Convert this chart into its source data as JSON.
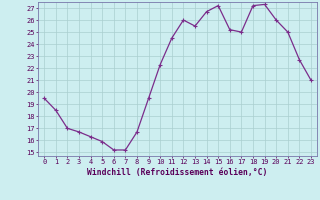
{
  "x": [
    0,
    1,
    2,
    3,
    4,
    5,
    6,
    7,
    8,
    9,
    10,
    11,
    12,
    13,
    14,
    15,
    16,
    17,
    18,
    19,
    20,
    21,
    22,
    23
  ],
  "y": [
    19.5,
    18.5,
    17.0,
    16.7,
    16.3,
    15.9,
    15.2,
    15.2,
    16.7,
    19.5,
    22.3,
    24.5,
    26.0,
    25.5,
    26.7,
    27.2,
    25.2,
    25.0,
    27.2,
    27.3,
    26.0,
    25.0,
    22.7,
    21.0
  ],
  "line_color": "#7b2d8b",
  "marker": "+",
  "marker_size": 3,
  "marker_linewidth": 0.8,
  "line_width": 0.9,
  "bg_color": "#cdeef0",
  "grid_color": "#aacfcf",
  "xlabel": "Windchill (Refroidissement éolien,°C)",
  "ylabel_ticks": [
    15,
    16,
    17,
    18,
    19,
    20,
    21,
    22,
    23,
    24,
    25,
    26,
    27
  ],
  "xlim": [
    -0.5,
    23.5
  ],
  "ylim": [
    14.7,
    27.5
  ],
  "axis_label_color": "#5a005a",
  "tick_label_color": "#5a005a",
  "spine_color": "#7777aa",
  "xlabel_fontsize": 5.8,
  "tick_fontsize": 5.0
}
